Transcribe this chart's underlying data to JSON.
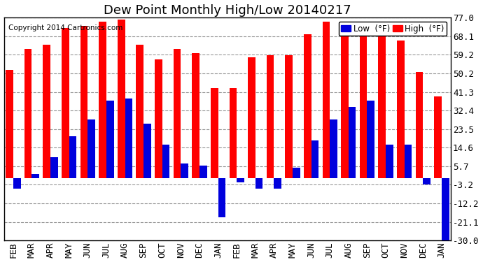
{
  "title": "Dew Point Monthly High/Low 20140217",
  "copyright": "Copyright 2014 Cartronics.com",
  "categories": [
    "FEB",
    "MAR",
    "APR",
    "MAY",
    "JUN",
    "JUL",
    "AUG",
    "SEP",
    "OCT",
    "NOV",
    "DEC",
    "JAN",
    "FEB",
    "MAR",
    "APR",
    "MAY",
    "JUN",
    "JUL",
    "AUG",
    "SEP",
    "OCT",
    "NOV",
    "DEC",
    "JAN"
  ],
  "high_values": [
    52,
    62,
    64,
    72,
    73,
    75,
    76,
    64,
    57,
    62,
    60,
    43,
    43,
    58,
    59,
    59,
    69,
    75,
    75,
    75,
    72,
    66,
    51,
    39
  ],
  "low_values": [
    -5,
    2,
    10,
    20,
    28,
    37,
    38,
    26,
    16,
    7,
    6,
    -19,
    -2,
    -5,
    -5,
    5,
    18,
    28,
    34,
    37,
    16,
    16,
    -3,
    -30
  ],
  "ylim": [
    -30,
    77
  ],
  "yticks": [
    -30.0,
    -21.1,
    -12.2,
    -3.2,
    5.7,
    14.6,
    23.5,
    32.4,
    41.3,
    50.2,
    59.2,
    68.1,
    77.0
  ],
  "high_color": "#FF0000",
  "low_color": "#0000DD",
  "background_color": "#FFFFFF",
  "plot_bg_color": "#FFFFFF",
  "grid_color": "#999999",
  "title_fontsize": 13,
  "tick_fontsize": 9,
  "copyright_fontsize": 7.5
}
